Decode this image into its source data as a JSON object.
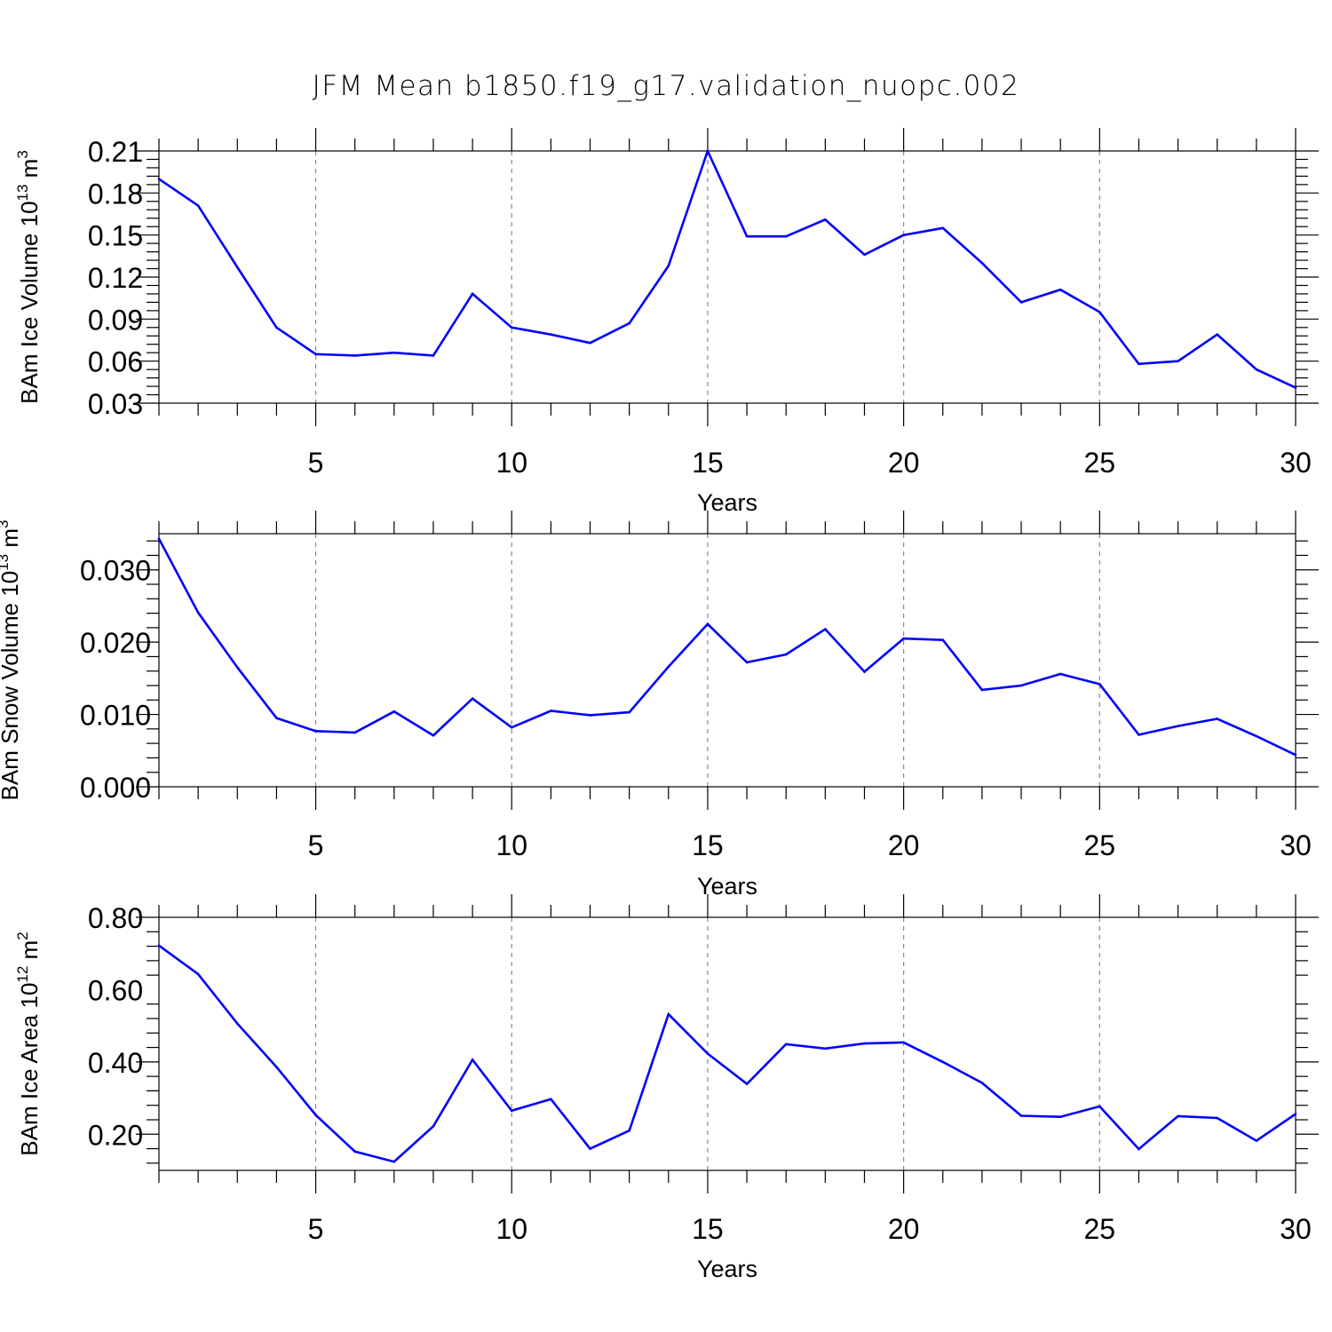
{
  "chart_data": {
    "title": "JFM Mean b1850.f19_g17.validation_nuopc.002",
    "title_color": "#999999",
    "line_color": "#0000ff",
    "grid": "dashed vertical lines at major x ticks",
    "panels": [
      {
        "type": "line",
        "ylabel": "BAm Ice Volume 10",
        "ylabel_exp": "13",
        "ylabel_unit": " m",
        "ylabel_unit_exp": "3",
        "xlabel": "Years",
        "xlim": [
          1,
          30
        ],
        "ylim": [
          0.03,
          0.21
        ],
        "yticks": [
          0.03,
          0.06,
          0.09,
          0.12,
          0.15,
          0.18,
          0.21
        ],
        "ytick_labels": [
          "0.03",
          "0.06",
          "0.09",
          "0.12",
          "0.15",
          "0.18",
          "0.21"
        ],
        "xticks": [
          5,
          10,
          15,
          20,
          25,
          30
        ],
        "xtick_labels": [
          "5",
          "10",
          "15",
          "20",
          "25",
          "30"
        ],
        "x": [
          1,
          2,
          3,
          4,
          5,
          6,
          7,
          8,
          9,
          10,
          11,
          12,
          13,
          14,
          15,
          16,
          17,
          18,
          19,
          20,
          21,
          22,
          23,
          24,
          25,
          26,
          27,
          28,
          29,
          30
        ],
        "values": [
          0.19,
          0.171,
          0.127,
          0.084,
          0.065,
          0.064,
          0.066,
          0.064,
          0.108,
          0.084,
          0.079,
          0.073,
          0.087,
          0.128,
          0.21,
          0.149,
          0.149,
          0.161,
          0.136,
          0.15,
          0.155,
          0.13,
          0.102,
          0.111,
          0.095,
          0.058,
          0.06,
          0.079,
          0.054,
          0.041
        ]
      },
      {
        "type": "line",
        "ylabel": "BAm Snow Volume 10",
        "ylabel_exp": "13",
        "ylabel_unit": " m",
        "ylabel_unit_exp": "3",
        "xlabel": "Years",
        "xlim": [
          1,
          30
        ],
        "ylim": [
          0.0,
          0.035
        ],
        "yticks": [
          0.0,
          0.01,
          0.02,
          0.03
        ],
        "ytick_labels": [
          "0.000",
          "0.010",
          "0.020",
          "0.030"
        ],
        "xticks": [
          5,
          10,
          15,
          20,
          25,
          30
        ],
        "xtick_labels": [
          "5",
          "10",
          "15",
          "20",
          "25",
          "30"
        ],
        "x": [
          1,
          2,
          3,
          4,
          5,
          6,
          7,
          8,
          9,
          10,
          11,
          12,
          13,
          14,
          15,
          16,
          17,
          18,
          19,
          20,
          21,
          22,
          23,
          24,
          25,
          26,
          27,
          28,
          29,
          30
        ],
        "values": [
          0.0343,
          0.0241,
          0.0165,
          0.0095,
          0.0077,
          0.0075,
          0.0104,
          0.0071,
          0.0122,
          0.0082,
          0.0105,
          0.0099,
          0.0103,
          0.0166,
          0.0225,
          0.0172,
          0.0183,
          0.0218,
          0.0159,
          0.0205,
          0.0203,
          0.0134,
          0.014,
          0.0156,
          0.0142,
          0.0072,
          0.0084,
          0.0094,
          0.007,
          0.0044
        ]
      },
      {
        "type": "line",
        "ylabel": "BAm Ice Area 10",
        "ylabel_exp": "12",
        "ylabel_unit": " m",
        "ylabel_unit_exp": "2",
        "xlabel": "Years",
        "xlim": [
          1,
          30
        ],
        "ylim": [
          0.1,
          0.8
        ],
        "yticks": [
          0.2,
          0.4,
          0.6,
          0.8
        ],
        "ytick_labels": [
          "0.20",
          "0.40",
          "0.60",
          "0.80"
        ],
        "xticks": [
          5,
          10,
          15,
          20,
          25,
          30
        ],
        "xtick_labels": [
          "5",
          "10",
          "15",
          "20",
          "25",
          "30"
        ],
        "x": [
          1,
          2,
          3,
          4,
          5,
          6,
          7,
          8,
          9,
          10,
          11,
          12,
          13,
          14,
          15,
          16,
          17,
          18,
          19,
          20,
          21,
          22,
          23,
          24,
          25,
          26,
          27,
          28,
          29,
          30
        ],
        "values": [
          0.722,
          0.643,
          0.506,
          0.386,
          0.253,
          0.152,
          0.124,
          0.222,
          0.406,
          0.265,
          0.297,
          0.16,
          0.21,
          0.532,
          0.423,
          0.339,
          0.449,
          0.437,
          0.451,
          0.454,
          0.4,
          0.342,
          0.251,
          0.248,
          0.277,
          0.159,
          0.25,
          0.245,
          0.182,
          0.256
        ]
      }
    ]
  }
}
